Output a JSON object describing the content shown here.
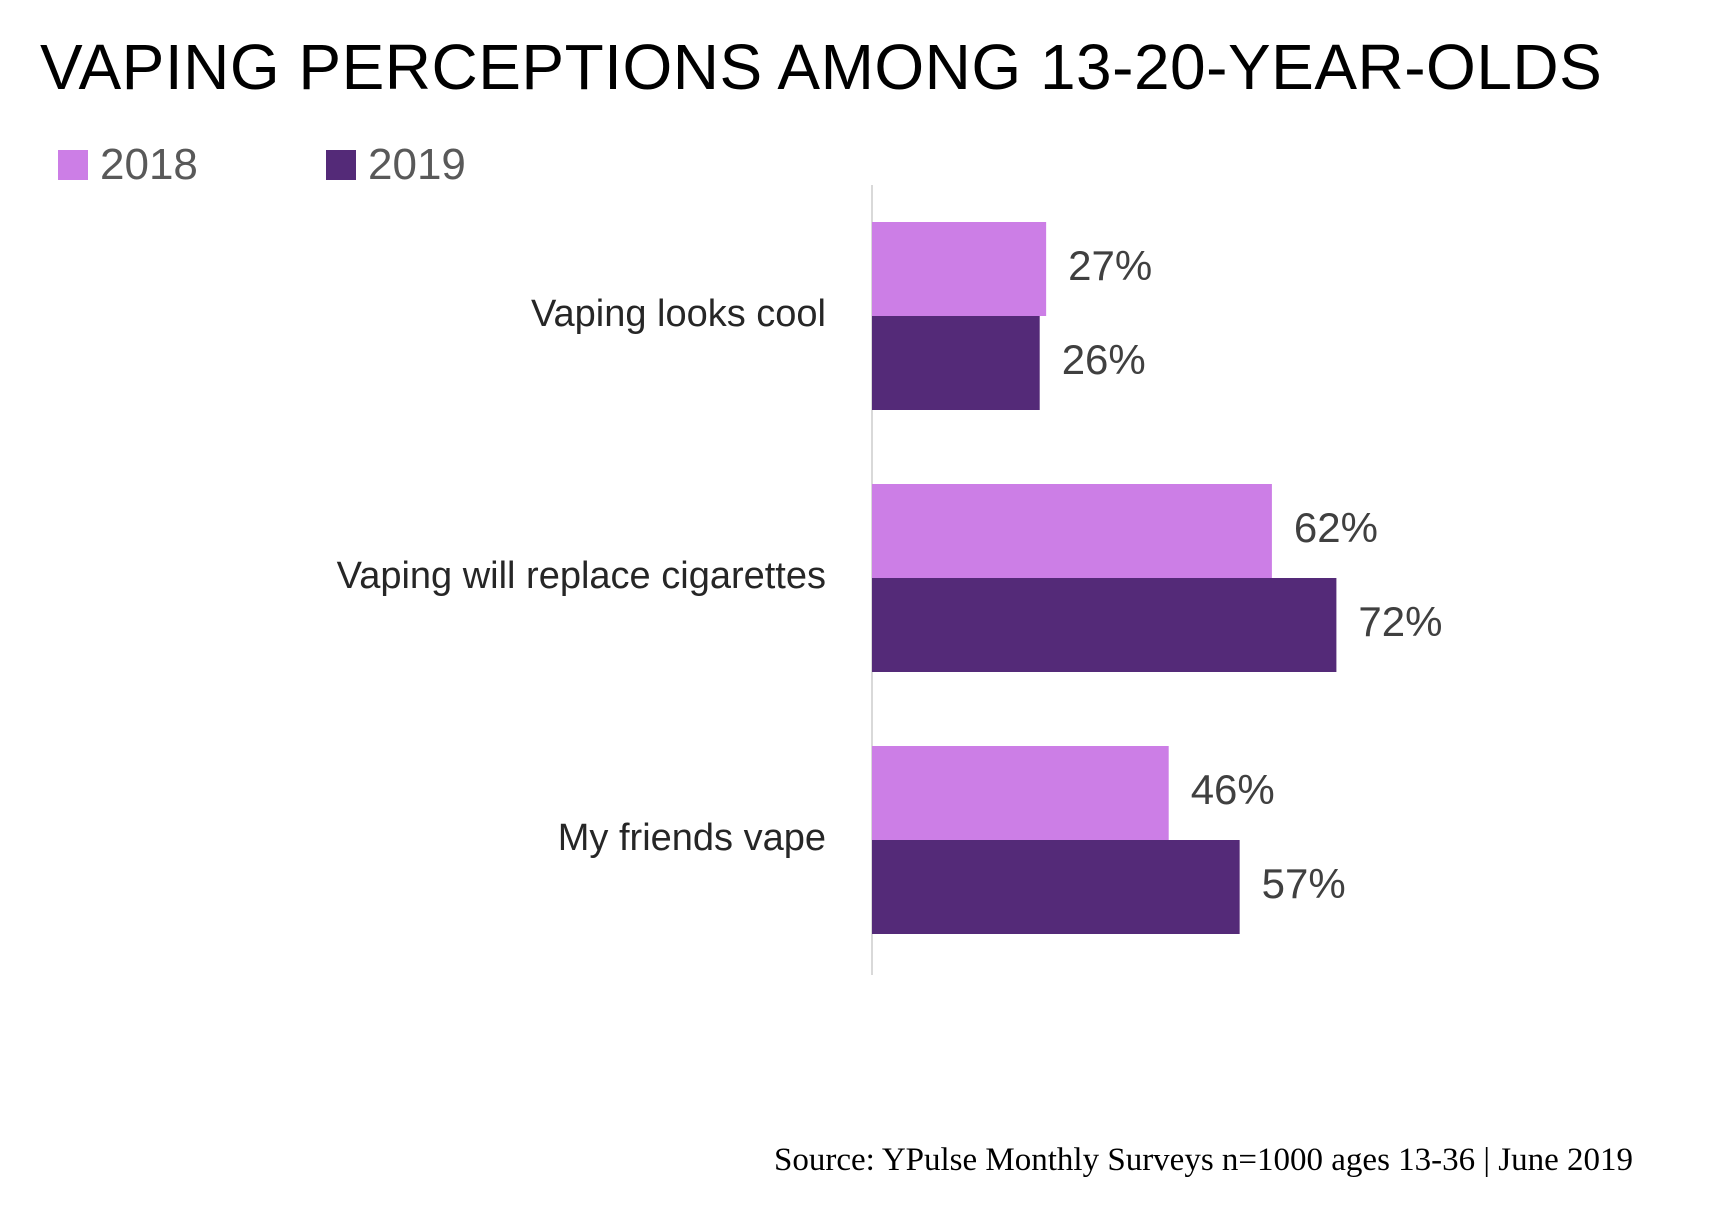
{
  "chart_data": {
    "type": "bar",
    "orientation": "horizontal",
    "title": "VAPING PERCEPTIONS AMONG 13-20-YEAR-OLDS",
    "categories": [
      "Vaping looks cool",
      "Vaping will replace cigarettes",
      "My friends vape"
    ],
    "series": [
      {
        "name": "2018",
        "values": [
          27,
          62,
          46
        ],
        "labels": [
          "27%",
          "62%",
          "46%"
        ],
        "color": "#cc7ee6"
      },
      {
        "name": "2019",
        "values": [
          26,
          72,
          57
        ],
        "labels": [
          "26%",
          "72%",
          "57%"
        ],
        "color": "#542a78"
      }
    ],
    "xlim": [
      0,
      100
    ],
    "value_suffix": "%",
    "grid": false,
    "legend": "top-left"
  },
  "source": "Source: YPulse Monthly Surveys n=1000 ages 13-36 | June 2019"
}
